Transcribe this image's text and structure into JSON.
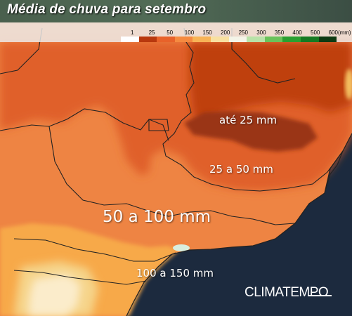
{
  "title": "Média de chuva para setembro",
  "legend": {
    "items": [
      {
        "label": "1",
        "color": "#ffffff"
      },
      {
        "label": "25",
        "color": "#b8380e"
      },
      {
        "label": "50",
        "color": "#e8622a"
      },
      {
        "label": "100",
        "color": "#f58a40"
      },
      {
        "label": "150",
        "color": "#f7b356"
      },
      {
        "label": "200",
        "color": "#f8e0a0"
      },
      {
        "label": "250",
        "color": "#f4f4e8"
      },
      {
        "label": "300",
        "color": "#b8e2a8"
      },
      {
        "label": "350",
        "color": "#6ac25a"
      },
      {
        "label": "400",
        "color": "#2aa030"
      },
      {
        "label": "500",
        "color": "#157a22"
      },
      {
        "label": "600(mm)",
        "color": "#0e3a12"
      }
    ]
  },
  "regions": [
    {
      "label": "até 25 mm",
      "color": "#9a3412"
    },
    {
      "label": "25 a 50 mm",
      "color": "#e0602a"
    },
    {
      "label": "50 a 100 mm",
      "color": "#ee8443"
    },
    {
      "label": "100 a 150 mm",
      "color": "#f7a948"
    }
  ],
  "brand": "CLIMATEMPO",
  "colors": {
    "ocean": "#1c2a3e",
    "title_bar": "#466a58",
    "border": "#222222"
  }
}
